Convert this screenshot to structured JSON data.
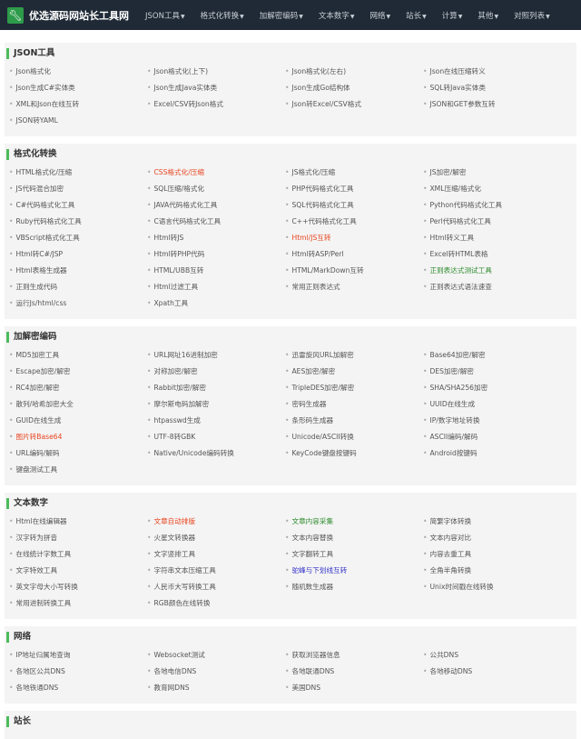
{
  "header": {
    "brand": "优选源码网站长工具网",
    "logo_icon": "wrench-icon",
    "menu": [
      "JSON工具",
      "格式化转换",
      "加解密编码",
      "文本数字",
      "网络",
      "站长",
      "计算",
      "其他",
      "对照列表"
    ]
  },
  "colors": {
    "accent": "#4cbb5b",
    "nav_bg": "#1f2a36",
    "red": "#e8441e",
    "green": "#2e8b2e",
    "blue": "#3333cc"
  },
  "sections": [
    {
      "title": "JSON工具",
      "items": [
        {
          "label": "Json格式化"
        },
        {
          "label": "Json格式化(上下)"
        },
        {
          "label": "Json格式化(左右)"
        },
        {
          "label": "Json在线压缩转义"
        },
        {
          "label": "Json生成C#实体类"
        },
        {
          "label": "Json生成Java实体类"
        },
        {
          "label": "Json生成Go结构体"
        },
        {
          "label": "SQL转Java实体类"
        },
        {
          "label": "XML和Json在线互转"
        },
        {
          "label": "Excel/CSV转Json格式"
        },
        {
          "label": "Json转Excel/CSV格式"
        },
        {
          "label": "JSON和GET参数互转"
        },
        {
          "label": "JSON转YAML"
        }
      ]
    },
    {
      "title": "格式化转换",
      "items": [
        {
          "label": "HTML格式化/压缩"
        },
        {
          "label": "CSS格式化/压缩",
          "color": "red"
        },
        {
          "label": "JS格式化/压缩"
        },
        {
          "label": "JS加密/解密"
        },
        {
          "label": "JS代码混合加密"
        },
        {
          "label": "SQL压缩/格式化"
        },
        {
          "label": "PHP代码格式化工具"
        },
        {
          "label": "XML压缩/格式化"
        },
        {
          "label": "C#代码格式化工具"
        },
        {
          "label": "JAVA代码格式化工具"
        },
        {
          "label": "SQL代码格式化工具"
        },
        {
          "label": "Python代码格式化工具"
        },
        {
          "label": "Ruby代码格式化工具"
        },
        {
          "label": "C语言代码格式化工具"
        },
        {
          "label": "C++代码格式化工具"
        },
        {
          "label": "Perl代码格式化工具"
        },
        {
          "label": "VBScript格式化工具"
        },
        {
          "label": "Html转JS"
        },
        {
          "label": "Html/JS互转",
          "color": "red"
        },
        {
          "label": "Html转义工具"
        },
        {
          "label": "Html转C#/JSP"
        },
        {
          "label": "Html转PHP代码"
        },
        {
          "label": "Html转ASP/Perl"
        },
        {
          "label": "Excel转HTML表格"
        },
        {
          "label": "Html表格生成器"
        },
        {
          "label": "HTML/UBB互转"
        },
        {
          "label": "HTML/MarkDown互转"
        },
        {
          "label": "正则表达式测试工具",
          "color": "green"
        },
        {
          "label": "正则生成代码"
        },
        {
          "label": "Html过滤工具"
        },
        {
          "label": "常用正则表达式"
        },
        {
          "label": "正则表达式语法速查"
        },
        {
          "label": "运行Js/html/css"
        },
        {
          "label": "Xpath工具"
        }
      ]
    },
    {
      "title": "加解密编码",
      "items": [
        {
          "label": "MD5加密工具"
        },
        {
          "label": "URL网址16进制加密"
        },
        {
          "label": "迅雷旋风URL加解密"
        },
        {
          "label": "Base64加密/解密"
        },
        {
          "label": "Escape加密/解密"
        },
        {
          "label": "对称加密/解密"
        },
        {
          "label": "AES加密/解密"
        },
        {
          "label": "DES加密/解密"
        },
        {
          "label": "RC4加密/解密"
        },
        {
          "label": "Rabbit加密/解密"
        },
        {
          "label": "TripleDES加密/解密"
        },
        {
          "label": "SHA/SHA256加密"
        },
        {
          "label": "散列/哈希加密大全"
        },
        {
          "label": "摩尔斯电码加解密"
        },
        {
          "label": "密码生成器"
        },
        {
          "label": "UUID在线生成"
        },
        {
          "label": "GUID在线生成"
        },
        {
          "label": "htpasswd生成"
        },
        {
          "label": "条形码生成器"
        },
        {
          "label": "IP/数字地址转换"
        },
        {
          "label": "图片转Base64",
          "color": "red"
        },
        {
          "label": "UTF-8转GBK"
        },
        {
          "label": "Unicode/ASCII转换"
        },
        {
          "label": "ASCII编码/解码"
        },
        {
          "label": "URL编码/解码"
        },
        {
          "label": "Native/Unicode编码转换"
        },
        {
          "label": "KeyCode键盘按键码"
        },
        {
          "label": "Android按键码"
        },
        {
          "label": "键盘测试工具"
        }
      ]
    },
    {
      "title": "文本数字",
      "items": [
        {
          "label": "Html在线编辑器"
        },
        {
          "label": "文章自动排版",
          "color": "red"
        },
        {
          "label": "文章内容采集",
          "color": "green"
        },
        {
          "label": "简繁字体转换"
        },
        {
          "label": "汉字转为拼音"
        },
        {
          "label": "火星文转换器"
        },
        {
          "label": "文本内容替换"
        },
        {
          "label": "文本内容对比"
        },
        {
          "label": "在线统计字数工具"
        },
        {
          "label": "文字竖排工具"
        },
        {
          "label": "文字翻转工具"
        },
        {
          "label": "内容去重工具"
        },
        {
          "label": "文字特效工具"
        },
        {
          "label": "字符串文本压缩工具"
        },
        {
          "label": "驼峰与下划线互转",
          "color": "blue"
        },
        {
          "label": "全角半角转换"
        },
        {
          "label": "英文字母大小写转换"
        },
        {
          "label": "人民币大写转换工具"
        },
        {
          "label": "随机数生成器"
        },
        {
          "label": "Unix时间戳在线转换"
        },
        {
          "label": "常用进制转换工具"
        },
        {
          "label": "RGB颜色在线转换"
        }
      ]
    },
    {
      "title": "网络",
      "items": [
        {
          "label": "IP地址归属地查询"
        },
        {
          "label": "Websocket测试"
        },
        {
          "label": "获取浏览器信息"
        },
        {
          "label": "公共DNS"
        },
        {
          "label": "各地区公共DNS"
        },
        {
          "label": "各地电信DNS"
        },
        {
          "label": "各地联通DNS"
        },
        {
          "label": "各地移动DNS"
        },
        {
          "label": "各地铁通DNS"
        },
        {
          "label": "教育网DNS"
        },
        {
          "label": "美国DNS"
        }
      ]
    },
    {
      "title": "站长",
      "items": []
    }
  ]
}
